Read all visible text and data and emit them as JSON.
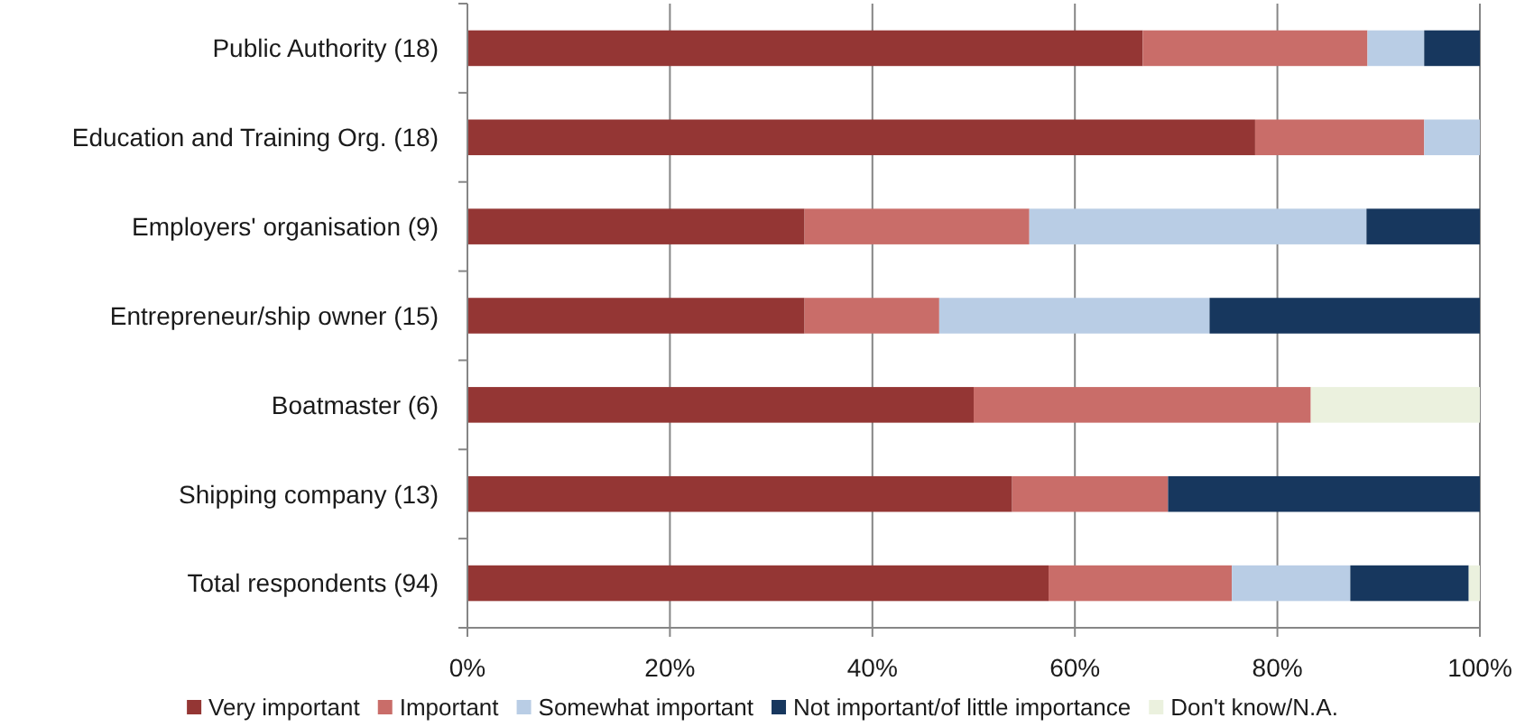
{
  "chart_data": {
    "type": "bar",
    "orientation": "horizontal",
    "stacked": true,
    "categories": [
      "Public Authority (18)",
      "Education and Training Org. (18)",
      "Employers' organisation (9)",
      "Entrepreneur/ship owner (15)",
      "Boatmaster (6)",
      "Shipping company (13)",
      "Total respondents (94)"
    ],
    "series": [
      {
        "name": "Very important",
        "color": "#943634",
        "values": [
          66.7,
          77.8,
          33.3,
          33.3,
          50,
          53.8,
          57.4
        ]
      },
      {
        "name": "Important",
        "color": "#c96d69",
        "values": [
          22.2,
          16.7,
          22.2,
          13.3,
          33.3,
          15.4,
          18.1
        ]
      },
      {
        "name": "Somewhat important",
        "color": "#b9cde5",
        "values": [
          5.6,
          5.5,
          33.3,
          26.7,
          null,
          null,
          11.7
        ]
      },
      {
        "name": "Not important/of little importance",
        "color": "#17375e",
        "values": [
          5.5,
          null,
          11.2,
          26.7,
          null,
          30.8,
          11.7
        ]
      },
      {
        "name": "Don't know/N.A.",
        "color": "#ebf1de",
        "values": [
          null,
          null,
          null,
          null,
          16.7,
          null,
          1.1
        ]
      }
    ],
    "xlim": [
      0,
      100
    ],
    "xticks": [
      {
        "value": 0,
        "label": "0%"
      },
      {
        "value": 20,
        "label": "20%"
      },
      {
        "value": 40,
        "label": "40%"
      },
      {
        "value": 60,
        "label": "60%"
      },
      {
        "value": 80,
        "label": "80%"
      },
      {
        "value": 100,
        "label": "100%"
      }
    ],
    "grid": "x",
    "legend": "bottom"
  }
}
